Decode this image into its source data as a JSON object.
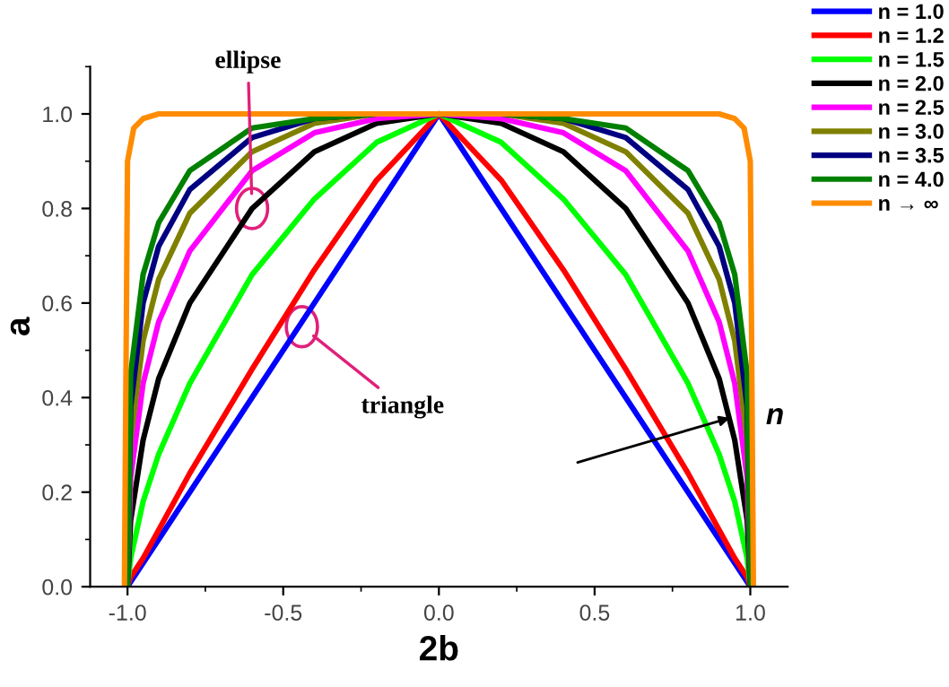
{
  "chart_data": {
    "type": "line",
    "xlabel": "2b",
    "ylabel": "a",
    "x": [
      -1,
      -0.99,
      -0.95,
      -0.9,
      -0.8,
      -0.6,
      -0.4,
      -0.2,
      0,
      0.2,
      0.4,
      0.6,
      0.8,
      0.9,
      0.95,
      0.99,
      1
    ],
    "series": [
      {
        "name": "n = 1.0",
        "color": "#0000ff",
        "values": [
          0,
          0.01,
          0.05,
          0.1,
          0.2,
          0.4,
          0.6,
          0.8,
          1,
          0.8,
          0.6,
          0.4,
          0.2,
          0.1,
          0.05,
          0.01,
          0
        ]
      },
      {
        "name": "n = 1.2",
        "color": "#ff0000",
        "values": [
          0,
          0.02,
          0.06,
          0.12,
          0.24,
          0.46,
          0.67,
          0.86,
          1,
          0.86,
          0.67,
          0.46,
          0.24,
          0.12,
          0.06,
          0.02,
          0
        ]
      },
      {
        "name": "n = 1.5",
        "color": "#00ff00",
        "values": [
          0,
          0.06,
          0.18,
          0.28,
          0.43,
          0.66,
          0.82,
          0.94,
          1,
          0.94,
          0.82,
          0.66,
          0.43,
          0.28,
          0.18,
          0.06,
          0
        ]
      },
      {
        "name": "n = 2.0",
        "color": "#000000",
        "values": [
          0,
          0.14,
          0.31,
          0.44,
          0.6,
          0.8,
          0.92,
          0.98,
          1,
          0.98,
          0.92,
          0.8,
          0.6,
          0.44,
          0.31,
          0.14,
          0
        ]
      },
      {
        "name": "n = 2.5",
        "color": "#ff00ff",
        "values": [
          0,
          0.23,
          0.43,
          0.56,
          0.71,
          0.88,
          0.96,
          0.99,
          1,
          0.99,
          0.96,
          0.88,
          0.71,
          0.56,
          0.43,
          0.23,
          0
        ]
      },
      {
        "name": "n = 3.0",
        "color": "#808000",
        "values": [
          0,
          0.31,
          0.52,
          0.65,
          0.79,
          0.92,
          0.98,
          1,
          1,
          1,
          0.98,
          0.92,
          0.79,
          0.65,
          0.52,
          0.31,
          0
        ]
      },
      {
        "name": "n = 3.5",
        "color": "#000080",
        "values": [
          0,
          0.38,
          0.6,
          0.72,
          0.84,
          0.95,
          0.99,
          1,
          1,
          1,
          0.99,
          0.95,
          0.84,
          0.72,
          0.6,
          0.38,
          0
        ]
      },
      {
        "name": "n = 4.0",
        "color": "#008000",
        "values": [
          0,
          0.45,
          0.66,
          0.77,
          0.88,
          0.97,
          0.99,
          1,
          1,
          1,
          0.99,
          0.97,
          0.88,
          0.77,
          0.66,
          0.45,
          0
        ]
      },
      {
        "name": "n → ∞",
        "color": "#ff8c00",
        "x": [
          -1.01,
          -1.0,
          -0.98,
          -0.95,
          -0.9,
          0,
          0.9,
          0.95,
          0.98,
          1.0,
          1.01
        ],
        "values": [
          0,
          0.9,
          0.97,
          0.99,
          1,
          1,
          1,
          0.99,
          0.97,
          0.9,
          0
        ]
      }
    ],
    "xlim": [
      -1.12,
      1.12
    ],
    "ylim": [
      0,
      1.1
    ],
    "xticks": [
      {
        "value": -1,
        "label": "-1.0"
      },
      -0.5,
      {
        "value": 0,
        "label": "0.0"
      },
      0.5,
      {
        "value": 1,
        "label": "1.0"
      }
    ],
    "yticks": [
      {
        "value": 0,
        "label": "0.0"
      },
      0.2,
      0.4,
      0.6,
      0.8,
      {
        "value": 1,
        "label": "1.0"
      }
    ],
    "grid": false,
    "legend": "top right",
    "marker": "none",
    "line_style": "solid",
    "annotations": [
      {
        "text": "ellipse",
        "x": -0.6,
        "y": 0.8
      },
      {
        "text": "triangle",
        "x": -0.44,
        "y": 0.55
      },
      {
        "text": "n",
        "x": 0.95,
        "y": 0.36
      }
    ]
  }
}
